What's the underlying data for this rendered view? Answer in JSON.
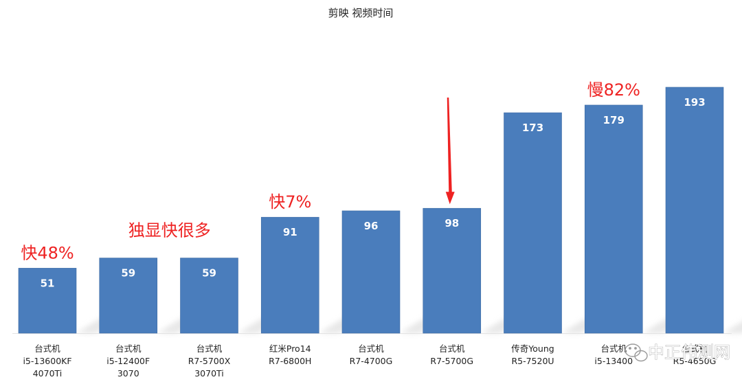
{
  "chart_data": {
    "type": "bar",
    "title": "剪映 视频时间",
    "xlabel": "",
    "ylabel": "",
    "ylim": [
      0,
      200
    ],
    "grid": false,
    "legend": "none",
    "categories": [
      [
        "台式机",
        "i5-13600KF",
        "4070Ti"
      ],
      [
        "台式机",
        "i5-12400F",
        "3070"
      ],
      [
        "台式机",
        "R7-5700X",
        "3070Ti"
      ],
      [
        "红米Pro14",
        "R7-6800H"
      ],
      [
        "台式机",
        "R7-4700G"
      ],
      [
        "台式机",
        "R7-5700G"
      ],
      [
        "传奇Young",
        "R5-7520U"
      ],
      [
        "台式机",
        "i5-13400"
      ],
      [
        "台式机",
        "R5-4650G"
      ]
    ],
    "values": [
      51,
      59,
      59,
      91,
      96,
      98,
      173,
      179,
      193
    ],
    "annotations": [
      {
        "text": "快48%",
        "category_index": 0
      },
      {
        "text": "独显快很多",
        "category_index": 1
      },
      {
        "text": "快7%",
        "category_index": 3
      },
      {
        "text": "慢82%",
        "category_index": 7
      }
    ],
    "arrow_target_index": 5,
    "colors": {
      "bar": "#4a7dbc",
      "bar_edge": "#3d6aa3",
      "annotation": "#ee2222",
      "shadow": "#d4d4d4"
    }
  },
  "watermark": {
    "text": "中正伟测网",
    "icon": "wechat-icon"
  }
}
